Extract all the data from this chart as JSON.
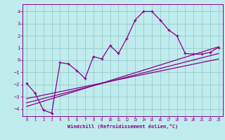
{
  "xlabel": "Windchill (Refroidissement éolien,°C)",
  "bg_color": "#c0ecee",
  "line_color": "#880088",
  "grid_color": "#99cccc",
  "xlim": [
    -0.5,
    23.5
  ],
  "ylim": [
    -4.6,
    4.6
  ],
  "yticks": [
    -4,
    -3,
    -2,
    -1,
    0,
    1,
    2,
    3,
    4
  ],
  "xticks": [
    0,
    1,
    2,
    3,
    4,
    5,
    6,
    7,
    8,
    9,
    10,
    11,
    12,
    13,
    14,
    15,
    16,
    17,
    18,
    19,
    20,
    21,
    22,
    23
  ],
  "wavy_x": [
    0,
    1,
    2,
    3,
    4,
    5,
    6,
    7,
    8,
    9,
    10,
    11,
    12,
    13,
    14,
    15,
    16,
    17,
    18,
    19,
    20,
    21,
    22,
    23
  ],
  "wavy_y": [
    -1.9,
    -2.7,
    -4.1,
    -4.35,
    -0.2,
    -0.3,
    -0.85,
    -1.5,
    0.3,
    0.1,
    1.2,
    0.55,
    1.8,
    3.3,
    4.0,
    4.0,
    3.3,
    2.5,
    2.0,
    0.55,
    0.5,
    0.5,
    0.65,
    1.05
  ],
  "line1_x": [
    0,
    23
  ],
  "line1_y": [
    -3.8,
    1.1
  ],
  "line2_x": [
    0,
    23
  ],
  "line2_y": [
    -3.5,
    0.55
  ],
  "line3_x": [
    0,
    23
  ],
  "line3_y": [
    -3.15,
    0.1
  ]
}
